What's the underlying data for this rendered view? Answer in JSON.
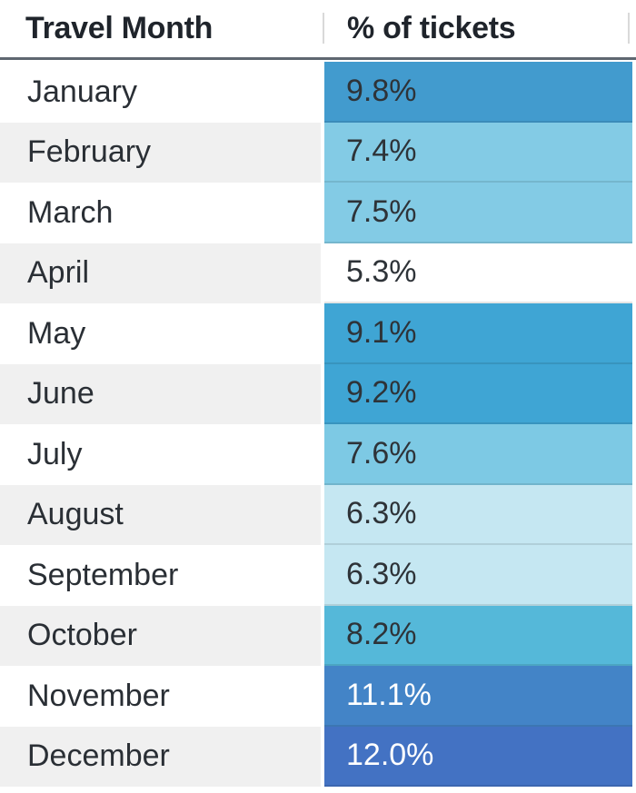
{
  "table": {
    "columns": [
      "Travel Month",
      "% of tickets"
    ],
    "rows": [
      {
        "month": "January",
        "value": "9.8%",
        "bg": "#429BCE",
        "fg": "#2E3338"
      },
      {
        "month": "February",
        "value": "7.4%",
        "bg": "#83CBE5",
        "fg": "#2E3338"
      },
      {
        "month": "March",
        "value": "7.5%",
        "bg": "#83CBE5",
        "fg": "#2E3338"
      },
      {
        "month": "April",
        "value": "5.3%",
        "bg": "#FFFFFF",
        "fg": "#2E3338"
      },
      {
        "month": "May",
        "value": "9.1%",
        "bg": "#3FA5D4",
        "fg": "#2E3338"
      },
      {
        "month": "June",
        "value": "9.2%",
        "bg": "#3FA5D4",
        "fg": "#2E3338"
      },
      {
        "month": "July",
        "value": "7.6%",
        "bg": "#7DC9E4",
        "fg": "#2E3338"
      },
      {
        "month": "August",
        "value": "6.3%",
        "bg": "#C5E7F2",
        "fg": "#2E3338"
      },
      {
        "month": "September",
        "value": "6.3%",
        "bg": "#C5E7F2",
        "fg": "#2E3338"
      },
      {
        "month": "October",
        "value": "8.2%",
        "bg": "#55B8D9",
        "fg": "#2E3338"
      },
      {
        "month": "November",
        "value": "11.1%",
        "bg": "#4384C7",
        "fg": "#FFFFFF"
      },
      {
        "month": "December",
        "value": "12.0%",
        "bg": "#4372C3",
        "fg": "#FFFFFF"
      }
    ],
    "stripe_color": "#F0F0F0",
    "header_underline_color": "#5F6771",
    "column_divider_color": "#D9D9D9"
  },
  "chart_data": {
    "type": "table",
    "title": "",
    "columns": [
      "Travel Month",
      "% of tickets"
    ],
    "categories": [
      "January",
      "February",
      "March",
      "April",
      "May",
      "June",
      "July",
      "August",
      "September",
      "October",
      "November",
      "December"
    ],
    "values": [
      9.8,
      7.4,
      7.5,
      5.3,
      9.1,
      9.2,
      7.6,
      6.3,
      6.3,
      8.2,
      11.1,
      12.0
    ],
    "value_unit": "%",
    "heatmap": true,
    "heatmap_colors": [
      "#429BCE",
      "#83CBE5",
      "#83CBE5",
      "#FFFFFF",
      "#3FA5D4",
      "#3FA5D4",
      "#7DC9E4",
      "#C5E7F2",
      "#C5E7F2",
      "#55B8D9",
      "#4384C7",
      "#4372C3"
    ]
  }
}
